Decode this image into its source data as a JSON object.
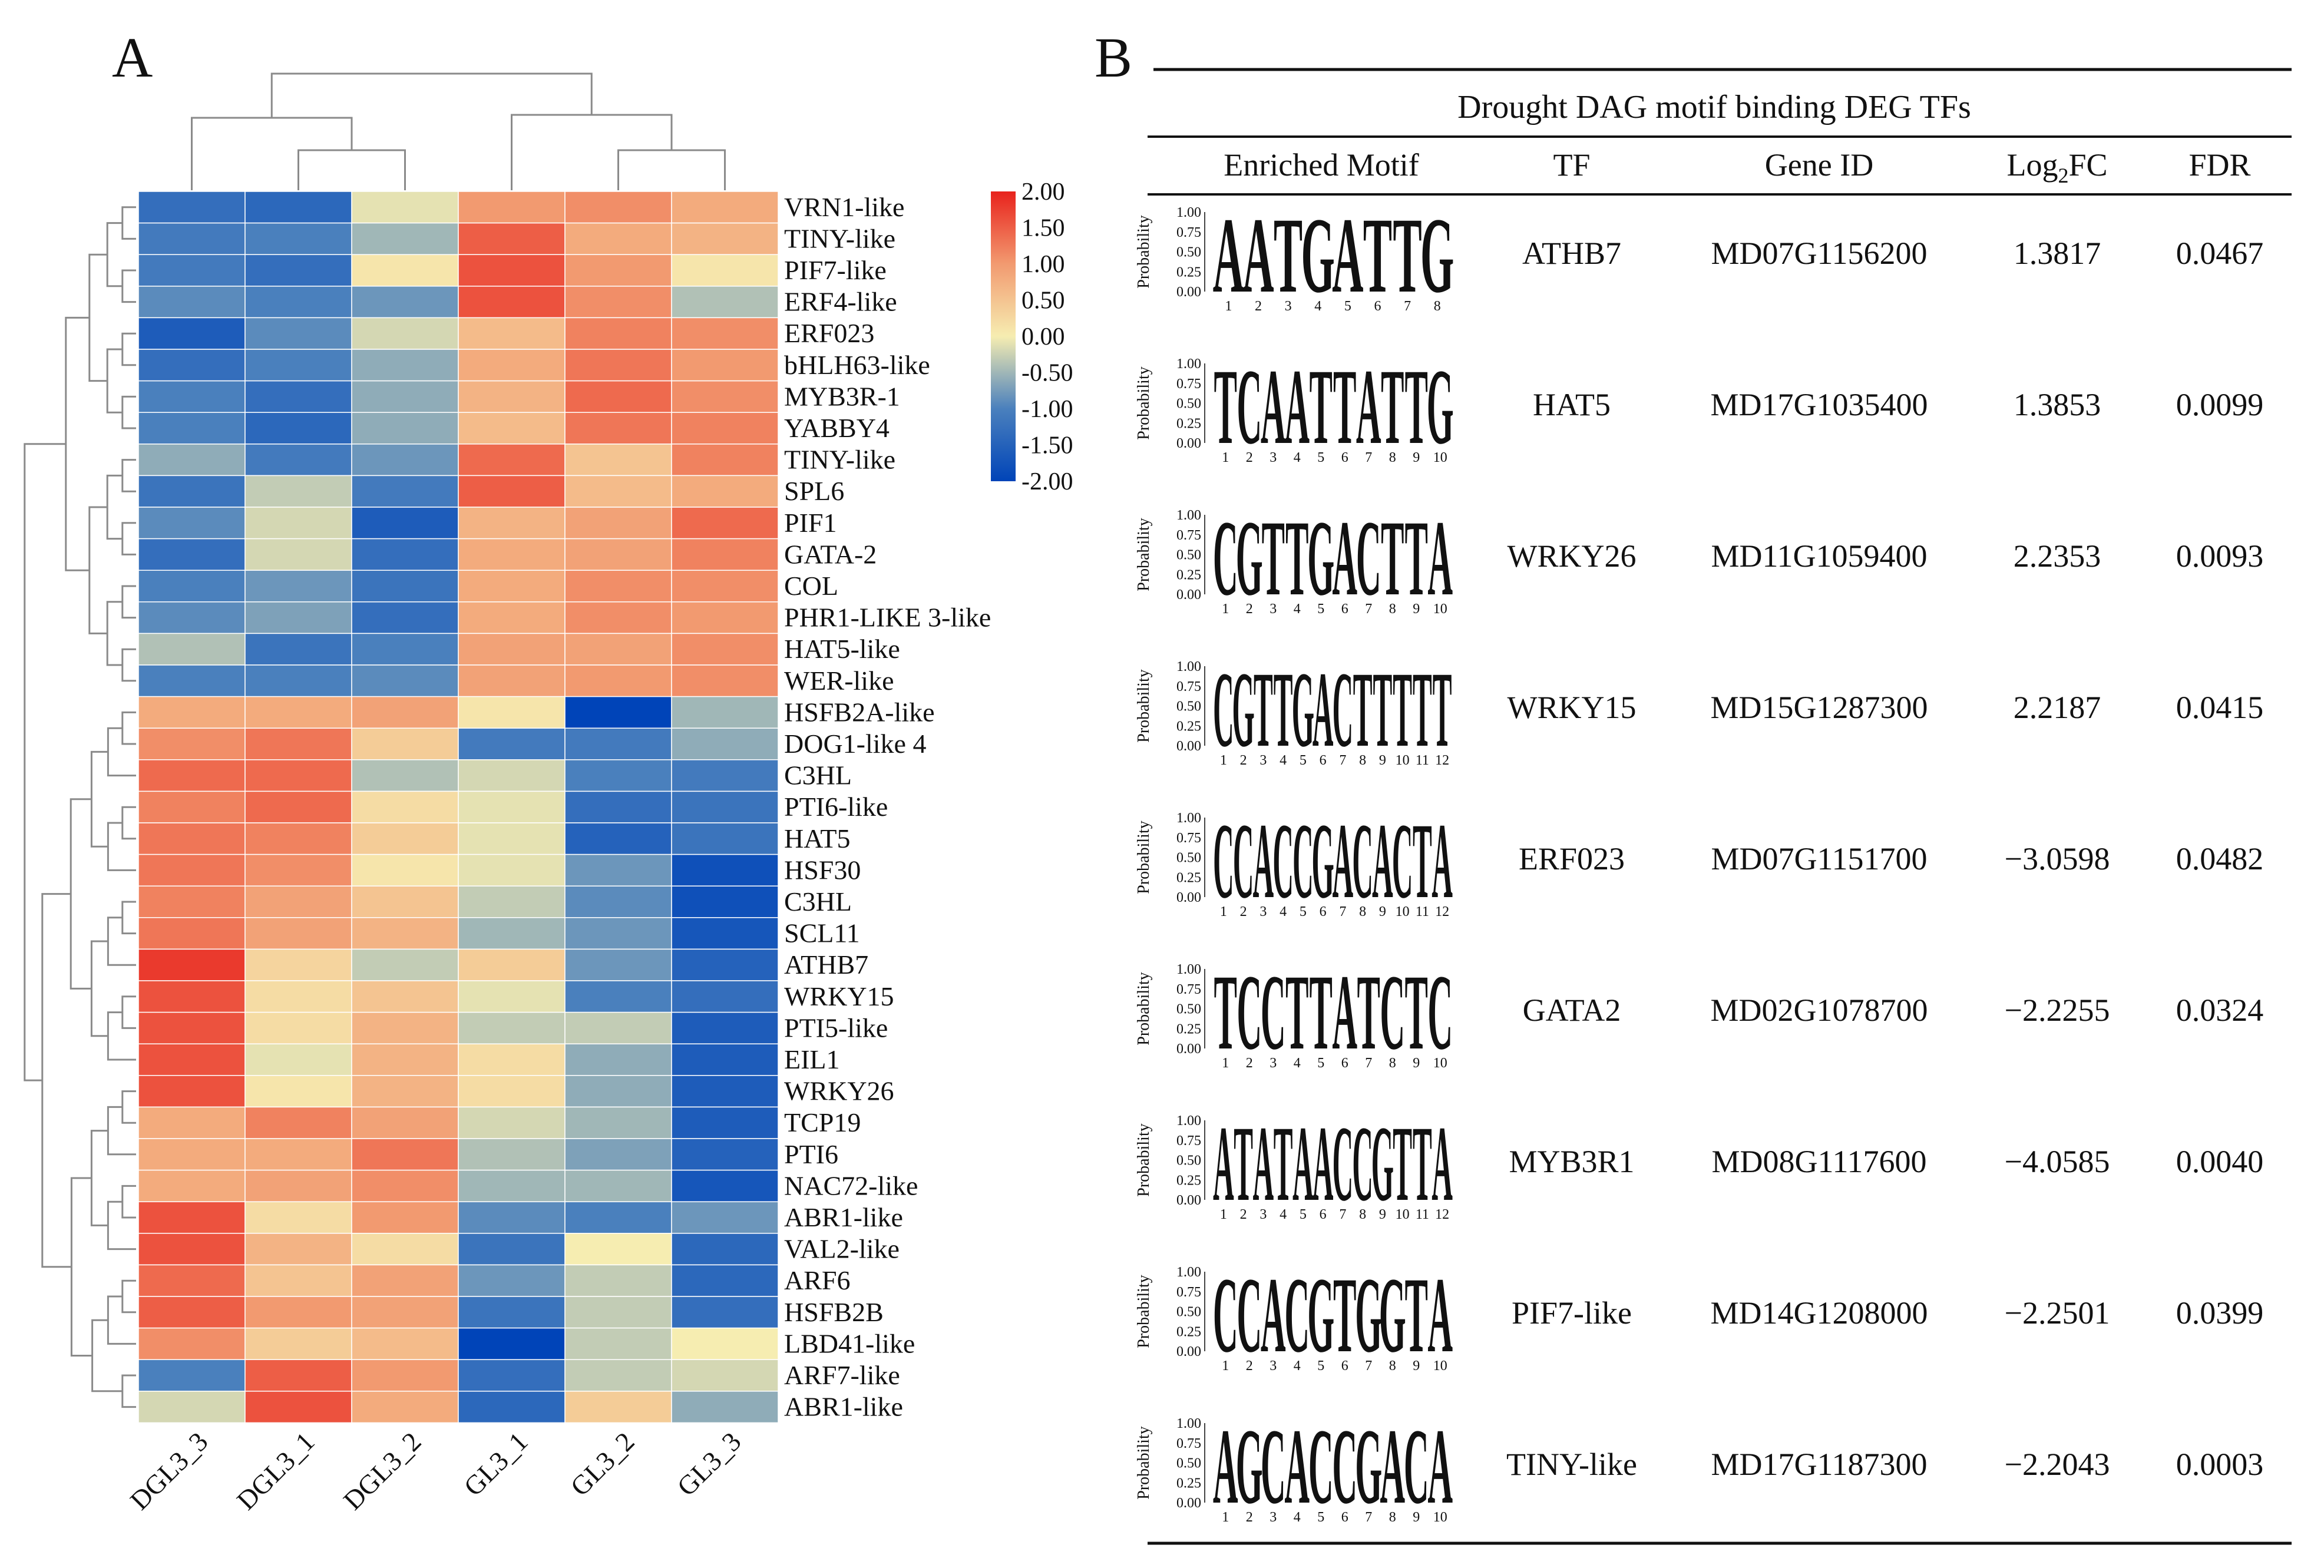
{
  "panel_a_label": "A",
  "panel_b_label": "B",
  "chart_data": [
    {
      "type": "heatmap",
      "title": "",
      "columns": [
        "DGL3_3",
        "DGL3_1",
        "DGL3_2",
        "GL3_1",
        "GL3_2",
        "GL3_3"
      ],
      "rows": [
        "VRN1-like",
        "TINY-like",
        "PIF7-like",
        "ERF4-like",
        "ERF023",
        "bHLH63-like",
        "MYB3R-1",
        "YABBY4",
        "TINY-like",
        "SPL6",
        "PIF1",
        "GATA-2",
        "COL",
        "PHR1-LIKE 3-like",
        "HAT5-like",
        "WER-like",
        "HSFB2A-like",
        "DOG1-like 4",
        "C3HL",
        "PTI6-like",
        "HAT5",
        "HSF30",
        "C3HL",
        "SCL11",
        "ATHB7",
        "WRKY15",
        "PTI5-like",
        "EIL1",
        "WRKY26",
        "TCP19",
        "PTI6",
        "NAC72-like",
        "ABR1-like",
        "VAL2-like",
        "ARF6",
        "HSFB2B",
        "LBD41-like",
        "ARF7-like",
        "ABR1-like"
      ],
      "values": [
        [
          -1.3,
          -1.4,
          -0.1,
          1.0,
          1.1,
          0.8
        ],
        [
          -1.1,
          -1.0,
          -0.5,
          1.5,
          0.8,
          0.7
        ],
        [
          -1.1,
          -1.3,
          0.1,
          1.6,
          1.0,
          0.1
        ],
        [
          -0.9,
          -1.0,
          -0.8,
          1.6,
          1.1,
          -0.4
        ],
        [
          -1.6,
          -0.9,
          -0.2,
          0.6,
          1.2,
          1.1
        ],
        [
          -1.3,
          -1.0,
          -0.6,
          0.8,
          1.3,
          1.0
        ],
        [
          -1.0,
          -1.3,
          -0.6,
          0.7,
          1.4,
          1.1
        ],
        [
          -1.0,
          -1.4,
          -0.6,
          0.6,
          1.3,
          1.2
        ],
        [
          -0.6,
          -1.1,
          -0.8,
          1.4,
          0.5,
          1.2
        ],
        [
          -1.2,
          -0.3,
          -1.1,
          1.5,
          0.6,
          0.8
        ],
        [
          -0.9,
          -0.2,
          -1.6,
          0.7,
          0.9,
          1.4
        ],
        [
          -1.3,
          -0.2,
          -1.3,
          0.8,
          0.9,
          1.2
        ],
        [
          -1.0,
          -0.8,
          -1.2,
          0.8,
          1.1,
          1.1
        ],
        [
          -0.9,
          -0.7,
          -1.3,
          0.8,
          1.1,
          1.0
        ],
        [
          -0.4,
          -1.2,
          -1.0,
          0.9,
          0.9,
          1.1
        ],
        [
          -1.0,
          -1.0,
          -0.9,
          0.9,
          1.0,
          1.1
        ],
        [
          0.8,
          0.8,
          0.9,
          0.1,
          -2.0,
          -0.5
        ],
        [
          1.1,
          1.3,
          0.4,
          -1.1,
          -1.1,
          -0.6
        ],
        [
          1.4,
          1.4,
          -0.4,
          -0.2,
          -1.0,
          -1.1
        ],
        [
          1.2,
          1.4,
          0.2,
          -0.1,
          -1.3,
          -1.2
        ],
        [
          1.3,
          1.2,
          0.4,
          -0.1,
          -1.5,
          -1.2
        ],
        [
          1.3,
          1.1,
          0.1,
          -0.1,
          -0.8,
          -1.8
        ],
        [
          1.2,
          0.9,
          0.5,
          -0.3,
          -0.9,
          -1.8
        ],
        [
          1.3,
          0.9,
          0.7,
          -0.5,
          -0.8,
          -1.7
        ],
        [
          1.8,
          0.3,
          -0.3,
          0.4,
          -0.8,
          -1.5
        ],
        [
          1.6,
          0.2,
          0.5,
          -0.1,
          -1.0,
          -1.3
        ],
        [
          1.6,
          0.2,
          0.7,
          -0.3,
          -0.3,
          -1.6
        ],
        [
          1.6,
          -0.1,
          0.7,
          0.2,
          -0.6,
          -1.6
        ],
        [
          1.6,
          0.1,
          0.7,
          0.2,
          -0.6,
          -1.6
        ],
        [
          0.8,
          1.2,
          0.9,
          -0.2,
          -0.5,
          -1.6
        ],
        [
          0.8,
          0.8,
          1.3,
          -0.4,
          -0.7,
          -1.5
        ],
        [
          0.8,
          0.9,
          1.1,
          -0.5,
          -0.5,
          -1.7
        ],
        [
          1.6,
          0.2,
          1.0,
          -0.9,
          -1.0,
          -0.8
        ],
        [
          1.6,
          0.7,
          0.2,
          -1.2,
          0.0,
          -1.4
        ],
        [
          1.4,
          0.5,
          0.9,
          -0.8,
          -0.3,
          -1.4
        ],
        [
          1.5,
          1.0,
          0.9,
          -1.2,
          -0.3,
          -1.3
        ],
        [
          1.1,
          0.4,
          0.6,
          -2.0,
          -0.3,
          0.0
        ],
        [
          -1.0,
          1.5,
          1.0,
          -1.3,
          -0.3,
          -0.2
        ],
        [
          -0.2,
          1.6,
          0.8,
          -1.4,
          0.4,
          -0.6
        ]
      ],
      "colorbar": {
        "min": -2.0,
        "max": 2.0,
        "stops": [
          "#0044b8",
          "#4a80bd",
          "#f6edb1",
          "#f29a70",
          "#e8221c"
        ],
        "tick_labels": [
          "2.00",
          "1.50",
          "1.00",
          "0.50",
          "0.00",
          "-0.50",
          "-1.00",
          "-1.50",
          "-2.00"
        ]
      }
    },
    {
      "type": "table",
      "title": "Drought DAG motif binding DEG TFs",
      "columns": [
        "Enriched Motif",
        "TF",
        "Gene ID",
        "Log₂FC",
        "FDR"
      ],
      "logo_axis_label": "Probability",
      "logo_ticks": [
        "1.00",
        "0.75",
        "0.50",
        "0.25",
        "0.00"
      ],
      "rows": [
        {
          "motif": "AATGATTG",
          "tf": "ATHB7",
          "gene_id": "MD07G1156200",
          "log2fc": "1.3817",
          "fdr": "0.0467"
        },
        {
          "motif": "TCAATTATTG",
          "tf": "HAT5",
          "gene_id": "MD17G1035400",
          "log2fc": "1.3853",
          "fdr": "0.0099"
        },
        {
          "motif": "CGTTGACTTA",
          "tf": "WRKY26",
          "gene_id": "MD11G1059400",
          "log2fc": "2.2353",
          "fdr": "0.0093"
        },
        {
          "motif": "CGTTGACTTTTT",
          "tf": "WRKY15",
          "gene_id": "MD15G1287300",
          "log2fc": "2.2187",
          "fdr": "0.0415"
        },
        {
          "motif": "CCACCGACACTA",
          "tf": "ERF023",
          "gene_id": "MD07G1151700",
          "log2fc": "−3.0598",
          "fdr": "0.0482"
        },
        {
          "motif": "TCCTTATCTC",
          "tf": "GATA2",
          "gene_id": "MD02G1078700",
          "log2fc": "−2.2255",
          "fdr": "0.0324"
        },
        {
          "motif": "ATATAACCGTTA",
          "tf": "MYB3R1",
          "gene_id": "MD08G1117600",
          "log2fc": "−4.0585",
          "fdr": "0.0040"
        },
        {
          "motif": "CCACGTGGTA",
          "tf": "PIF7-like",
          "gene_id": "MD14G1208000",
          "log2fc": "−2.2501",
          "fdr": "0.0399"
        },
        {
          "motif": "AGCACCGACA",
          "tf": "TINY-like",
          "gene_id": "MD17G1187300",
          "log2fc": "−2.2043",
          "fdr": "0.0003"
        }
      ]
    }
  ],
  "nucleotide_colors": {
    "A": "#1ba36a",
    "C": "#283593",
    "G": "#f5a340",
    "T": "#b3002d"
  }
}
